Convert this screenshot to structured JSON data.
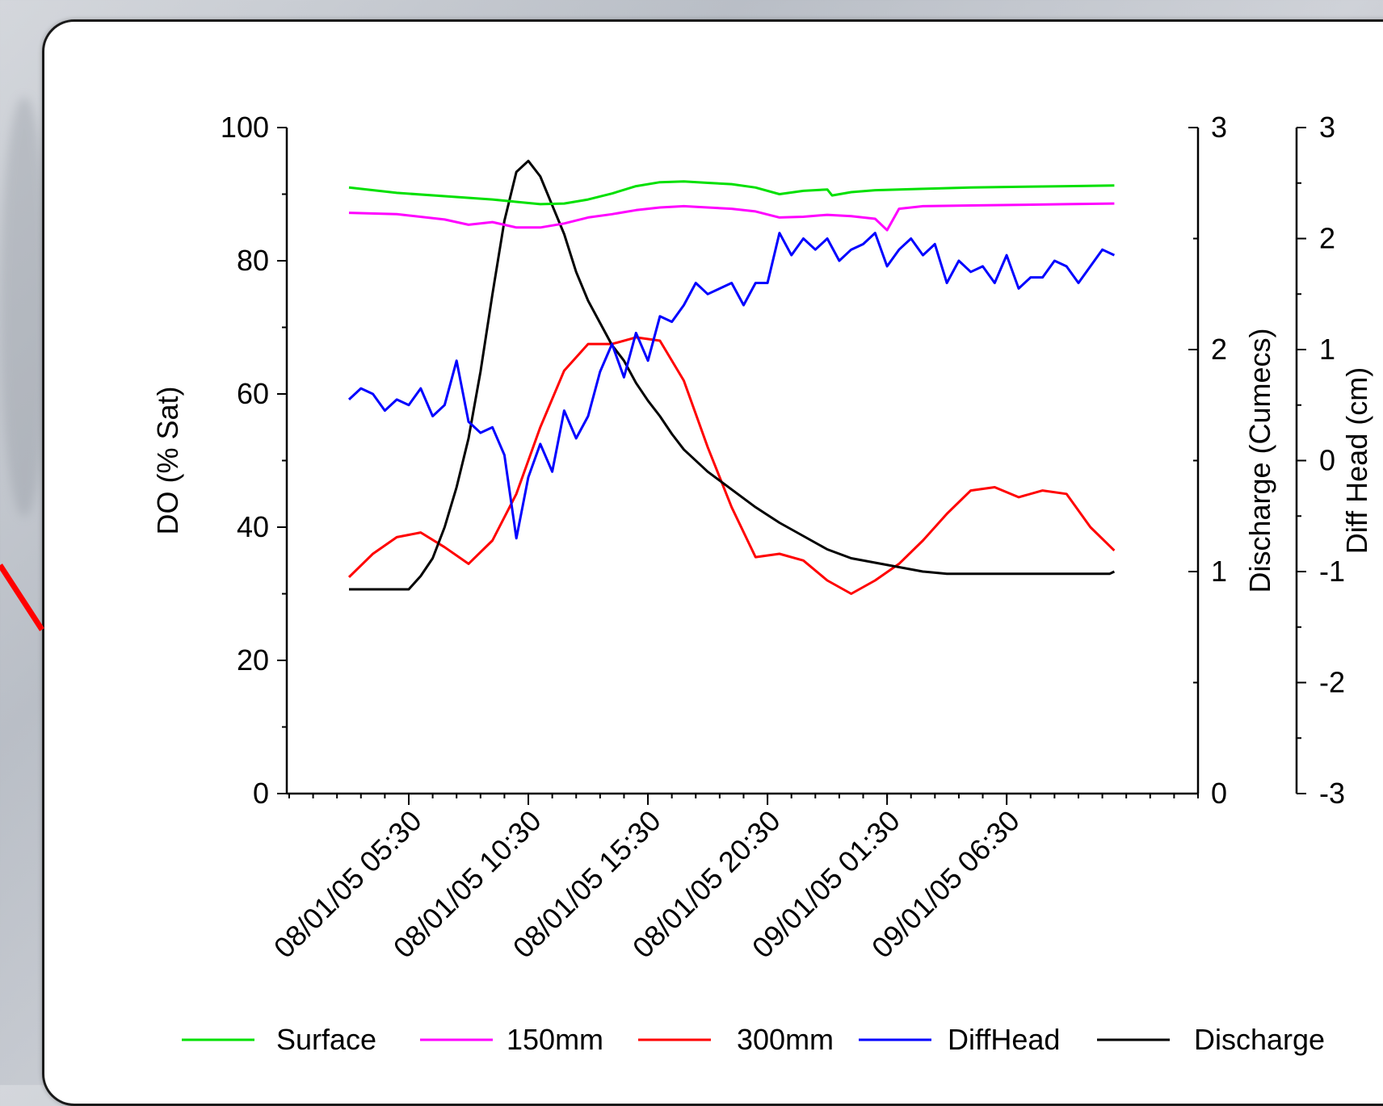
{
  "chart_data": {
    "type": "line",
    "title": "",
    "xlabel": "",
    "x_ticks": [
      "08/01/05 05:30",
      "08/01/05 10:30",
      "08/01/05 15:30",
      "08/01/05 20:30",
      "09/01/05 01:30",
      "09/01/05 06:30"
    ],
    "x_range_hours": [
      -2.6,
      35.5
    ],
    "axes": {
      "left": {
        "label": "DO (% Sat)",
        "range": [
          0,
          100
        ],
        "ticks": [
          "0",
          "20",
          "40",
          "60",
          "80",
          "100"
        ]
      },
      "right1": {
        "label": "Discharge (Cumecs)",
        "range": [
          0,
          3
        ],
        "ticks": [
          "0",
          "1",
          "2",
          "3"
        ]
      },
      "right2": {
        "label": "Diff Head (cm)",
        "range": [
          -3,
          3
        ],
        "ticks": [
          "-3",
          "-2",
          "-1",
          "0",
          "1",
          "2",
          "3"
        ]
      }
    },
    "legend_position": "bottom",
    "series": [
      {
        "name": "Surface",
        "axis": "left",
        "color": "#00e000",
        "x": [
          0,
          2,
          4,
          6,
          8,
          9,
          10,
          11,
          12,
          13,
          14,
          15,
          16,
          17,
          18,
          19,
          20,
          20.2,
          21,
          22,
          24,
          26,
          28,
          30,
          32
        ],
        "y": [
          91,
          90.2,
          89.7,
          89.2,
          88.5,
          88.6,
          89.2,
          90.1,
          91.2,
          91.8,
          91.9,
          91.7,
          91.5,
          91.0,
          90.0,
          90.5,
          90.7,
          89.8,
          90.3,
          90.6,
          90.8,
          91.0,
          91.1,
          91.2,
          91.3
        ]
      },
      {
        "name": "150mm",
        "axis": "left",
        "color": "#ff00ff",
        "x": [
          0,
          2,
          4,
          5,
          6,
          7,
          8,
          9,
          10,
          11,
          12,
          13,
          14,
          15,
          16,
          17,
          18,
          19,
          20,
          21,
          22,
          22.5,
          23,
          24,
          26,
          28,
          30,
          32
        ],
        "y": [
          87.2,
          87.0,
          86.2,
          85.4,
          85.8,
          85.0,
          85.0,
          85.6,
          86.5,
          87.0,
          87.6,
          88.0,
          88.2,
          88.0,
          87.8,
          87.4,
          86.5,
          86.6,
          86.9,
          86.7,
          86.3,
          84.6,
          87.8,
          88.2,
          88.3,
          88.4,
          88.5,
          88.6
        ]
      },
      {
        "name": "300mm",
        "axis": "left",
        "color": "#ff0000",
        "x": [
          0,
          1,
          2,
          3,
          4,
          5,
          6,
          7,
          8,
          9,
          10,
          11,
          12,
          13,
          14,
          15,
          16,
          17,
          18,
          19,
          20,
          21,
          22,
          23,
          24,
          25,
          26,
          27,
          28,
          29,
          30,
          31,
          32
        ],
        "y": [
          32.5,
          36.0,
          38.5,
          39.2,
          37.0,
          34.5,
          38.0,
          45.0,
          55.0,
          63.5,
          67.5,
          67.5,
          68.5,
          68.0,
          62.0,
          52.0,
          43.0,
          35.5,
          36.0,
          35.0,
          32.0,
          30.0,
          32.0,
          34.5,
          38.0,
          42.0,
          45.5,
          46.0,
          44.5,
          45.5,
          45.0,
          40.0,
          36.5
        ]
      },
      {
        "name": "DiffHead",
        "axis": "right2",
        "color": "#0000ff",
        "x": [
          0,
          0.5,
          1,
          1.5,
          2,
          2.5,
          3,
          3.5,
          4,
          4.5,
          5,
          5.5,
          6,
          6.5,
          7,
          7.5,
          8,
          8.5,
          9,
          9.5,
          10,
          10.5,
          11,
          11.5,
          12,
          12.5,
          13,
          13.5,
          14,
          14.5,
          15,
          15.5,
          16,
          16.5,
          17,
          17.5,
          18,
          18.5,
          19,
          19.5,
          20,
          20.5,
          21,
          21.5,
          22,
          22.5,
          23,
          23.5,
          24,
          24.5,
          25,
          25.5,
          26,
          26.5,
          27,
          27.5,
          28,
          28.5,
          29,
          29.5,
          30,
          30.5,
          31,
          31.5,
          32
        ],
        "y": [
          0.55,
          0.65,
          0.6,
          0.45,
          0.55,
          0.5,
          0.65,
          0.4,
          0.5,
          0.9,
          0.35,
          0.25,
          0.3,
          0.05,
          -0.7,
          -0.15,
          0.15,
          -0.1,
          0.45,
          0.2,
          0.4,
          0.8,
          1.05,
          0.75,
          1.15,
          0.9,
          1.3,
          1.25,
          1.4,
          1.6,
          1.5,
          1.55,
          1.6,
          1.4,
          1.6,
          1.6,
          2.05,
          1.85,
          2.0,
          1.9,
          2.0,
          1.8,
          1.9,
          1.95,
          2.05,
          1.75,
          1.9,
          2.0,
          1.85,
          1.95,
          1.6,
          1.8,
          1.7,
          1.75,
          1.6,
          1.85,
          1.55,
          1.65,
          1.65,
          1.8,
          1.75,
          1.6,
          1.75,
          1.9,
          1.85
        ]
      },
      {
        "name": "Discharge",
        "axis": "right1",
        "color": "#000000",
        "x": [
          0,
          1.5,
          2.5,
          3,
          3.5,
          4,
          4.5,
          5,
          5.5,
          6,
          6.5,
          7,
          7.5,
          8,
          8.5,
          9,
          9.5,
          10,
          10.5,
          11,
          11.5,
          12,
          12.5,
          13,
          13.5,
          14,
          15,
          16,
          17,
          18,
          19,
          20,
          21,
          22,
          23,
          24,
          25,
          26,
          27,
          28,
          29,
          30,
          31,
          31.8,
          32
        ],
        "y": [
          0.92,
          0.92,
          0.92,
          0.98,
          1.06,
          1.2,
          1.38,
          1.6,
          1.9,
          2.25,
          2.58,
          2.8,
          2.85,
          2.78,
          2.65,
          2.52,
          2.35,
          2.22,
          2.12,
          2.02,
          1.95,
          1.85,
          1.77,
          1.7,
          1.62,
          1.55,
          1.45,
          1.37,
          1.29,
          1.22,
          1.16,
          1.1,
          1.06,
          1.04,
          1.02,
          1.0,
          0.99,
          0.99,
          0.99,
          0.99,
          0.99,
          0.99,
          0.99,
          0.99,
          1.0
        ]
      }
    ]
  }
}
